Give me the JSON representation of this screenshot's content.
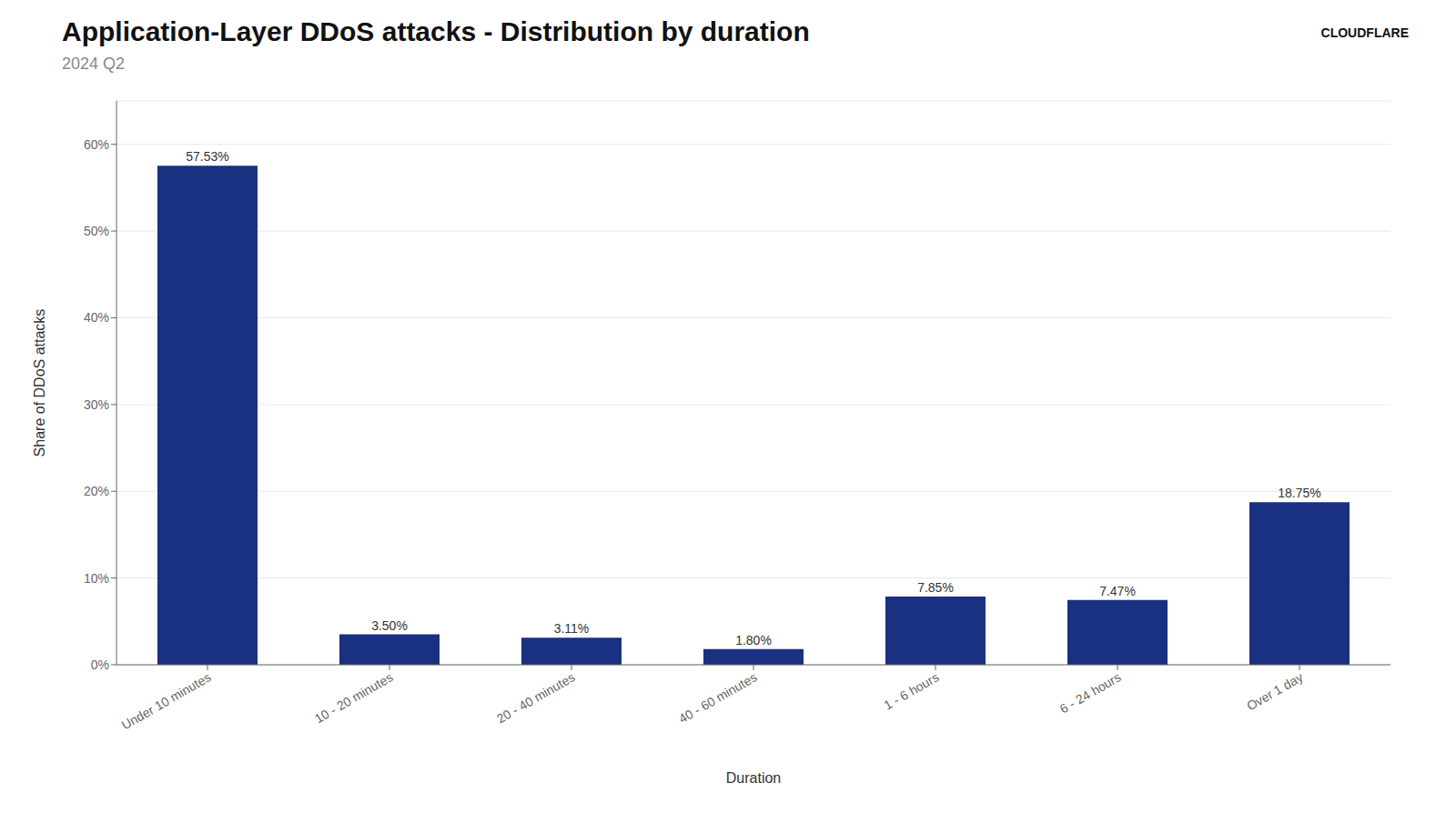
{
  "chart_data": {
    "type": "bar",
    "title": "Application-Layer DDoS attacks - Distribution by duration",
    "subtitle": "2024 Q2",
    "annotations": [
      "CLOUDFLARE"
    ],
    "categories": [
      "Under 10 minutes",
      "10 - 20 minutes",
      "20 - 40 minutes",
      "40 - 60 minutes",
      "1 - 6 hours",
      "6 - 24 hours",
      "Over 1 day"
    ],
    "values": [
      57.53,
      3.5,
      3.11,
      1.8,
      7.85,
      7.47,
      18.75
    ],
    "value_labels": [
      "57.53%",
      "3.50%",
      "3.11%",
      "1.80%",
      "7.85%",
      "7.47%",
      "18.75%"
    ],
    "data_labels": true,
    "color": "#1a3080",
    "xlabel": "Duration",
    "ylabel": "Share of DDoS attacks",
    "ylim": [
      0,
      65
    ],
    "yticks": [
      {
        "value": 0,
        "label": "0%"
      },
      {
        "value": 10,
        "label": "10%"
      },
      {
        "value": 20,
        "label": "20%"
      },
      {
        "value": 30,
        "label": "30%"
      },
      {
        "value": 40,
        "label": "40%"
      },
      {
        "value": 50,
        "label": "50%"
      },
      {
        "value": 60,
        "label": "60%"
      }
    ],
    "grid": true
  }
}
